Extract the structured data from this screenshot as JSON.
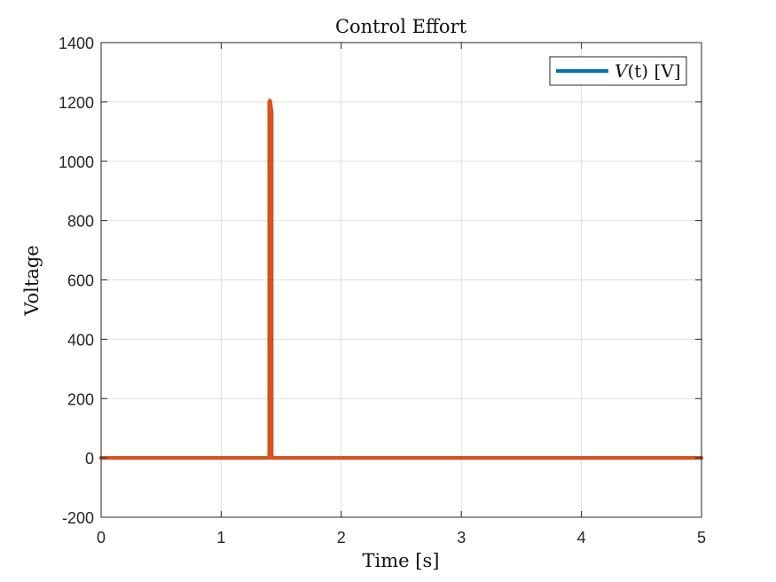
{
  "chart_data": {
    "type": "line",
    "title": "Control Effort",
    "xlabel": "Time [s]",
    "ylabel": "Voltage",
    "xlim": [
      0,
      5
    ],
    "ylim": [
      -200,
      1400
    ],
    "xticks": [
      0,
      1,
      2,
      3,
      4,
      5
    ],
    "xtick_labels": [
      "0",
      "1",
      "2",
      "3",
      "4",
      "5"
    ],
    "yticks": [
      -200,
      0,
      200,
      400,
      600,
      800,
      1000,
      1200,
      1400
    ],
    "ytick_labels": [
      "-200",
      "0",
      "200",
      "400",
      "600",
      "800",
      "1000",
      "1200",
      "1400"
    ],
    "grid": true,
    "legend": {
      "position": "top-right",
      "entries": [
        {
          "label_italic": "V",
          "label_rest": "(t) [V]",
          "color": "#0072BD"
        }
      ]
    },
    "series": [
      {
        "name": "V(t) [V]",
        "color": "#0072BD",
        "x": [
          0,
          1.4,
          1.4,
          1.405,
          1.41,
          1.415,
          1.42,
          1.42,
          5
        ],
        "y": [
          0,
          0,
          1200,
          1205,
          1200,
          1180,
          1170,
          0,
          0
        ]
      },
      {
        "color": "#D95319",
        "x": [
          0,
          1.4,
          1.4,
          1.405,
          1.41,
          1.415,
          1.42,
          1.42,
          5
        ],
        "y": [
          0,
          0,
          1200,
          1205,
          1200,
          1180,
          1170,
          0,
          0
        ]
      }
    ]
  }
}
